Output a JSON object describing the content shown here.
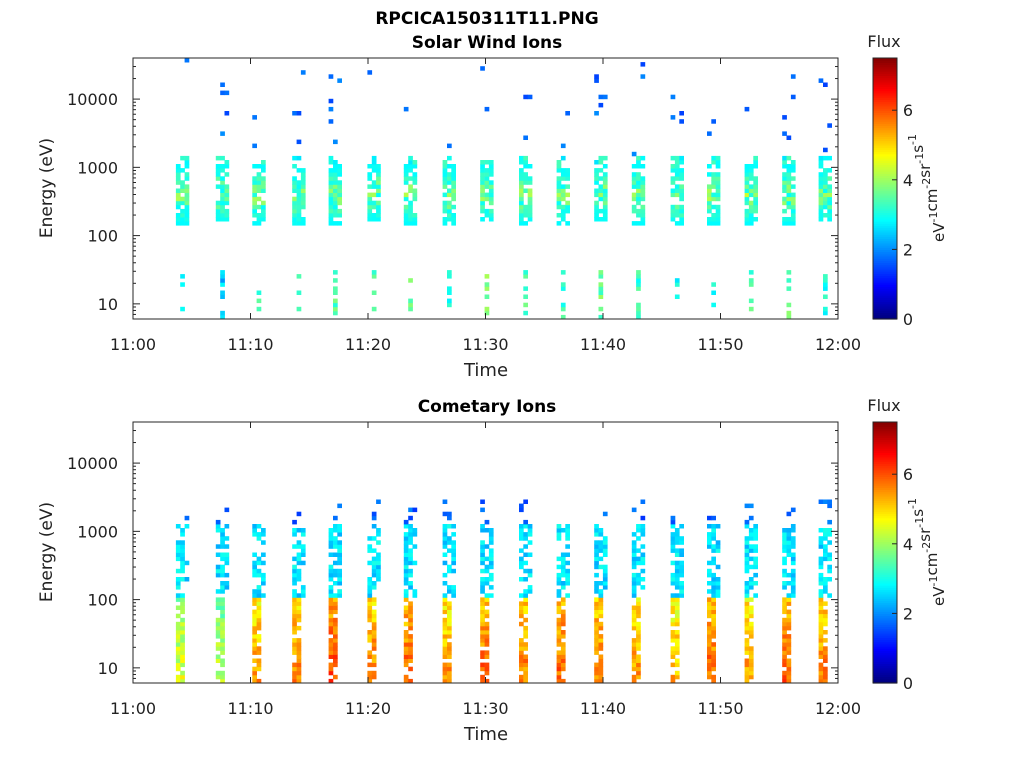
{
  "figure_title": "RPCICA150311T11.PNG",
  "colormap": [
    "#00007f",
    "#0000ff",
    "#007fff",
    "#00ffff",
    "#7fff7f",
    "#ffff00",
    "#ff7f00",
    "#ff0000",
    "#7f0000"
  ],
  "chart_data": [
    {
      "type": "heatmap",
      "title": "Solar Wind Ions",
      "xlabel": "Time",
      "ylabel": "Energy (eV)",
      "y_scale": "log",
      "x_ticks": [
        "11:00",
        "11:10",
        "11:20",
        "11:30",
        "11:40",
        "11:50",
        "12:00"
      ],
      "y_ticks": [
        "10",
        "100",
        "1000",
        "10000"
      ],
      "x_range": [
        "11:00",
        "12:00"
      ],
      "y_range": [
        6,
        40000
      ],
      "colorbar": {
        "title": "Flux",
        "label_parts": [
          "eV",
          "-1",
          "cm",
          "-2",
          "sr",
          "-1",
          "s",
          "-1"
        ],
        "ticks": [
          "0",
          "2",
          "4",
          "6"
        ],
        "range": [
          0,
          7.5
        ]
      },
      "sweeps": [
        {
          "minute": 4.2,
          "peak_energy": 400,
          "low_level": 2.6
        },
        {
          "minute": 7.6,
          "peak_energy": 420,
          "low_level": 2.4
        },
        {
          "minute": 10.7,
          "peak_energy": 400,
          "low_level": 3.2
        },
        {
          "minute": 14.1,
          "peak_energy": 380,
          "low_level": 3.0
        },
        {
          "minute": 17.2,
          "peak_energy": 400,
          "low_level": 3.4
        },
        {
          "minute": 20.5,
          "peak_energy": 420,
          "low_level": 3.4
        },
        {
          "minute": 23.6,
          "peak_energy": 400,
          "low_level": 3.6
        },
        {
          "minute": 26.9,
          "peak_energy": 380,
          "low_level": 3.0
        },
        {
          "minute": 30.1,
          "peak_energy": 420,
          "low_level": 3.8
        },
        {
          "minute": 33.4,
          "peak_energy": 400,
          "low_level": 3.4
        },
        {
          "minute": 36.6,
          "peak_energy": 380,
          "low_level": 3.2
        },
        {
          "minute": 39.8,
          "peak_energy": 420,
          "low_level": 3.6
        },
        {
          "minute": 43.0,
          "peak_energy": 400,
          "low_level": 3.2
        },
        {
          "minute": 46.3,
          "peak_energy": 380,
          "low_level": 2.8
        },
        {
          "minute": 49.4,
          "peak_energy": 400,
          "low_level": 3.0
        },
        {
          "minute": 52.6,
          "peak_energy": 400,
          "low_level": 3.4
        },
        {
          "minute": 55.8,
          "peak_energy": 400,
          "low_level": 3.6
        },
        {
          "minute": 58.9,
          "peak_energy": 420,
          "low_level": 3.0
        }
      ]
    },
    {
      "type": "heatmap",
      "title": "Cometary Ions",
      "xlabel": "Time",
      "ylabel": "Energy (eV)",
      "y_scale": "log",
      "x_ticks": [
        "11:00",
        "11:10",
        "11:20",
        "11:30",
        "11:40",
        "11:50",
        "12:00"
      ],
      "y_ticks": [
        "10",
        "100",
        "1000",
        "10000"
      ],
      "x_range": [
        "11:00",
        "12:00"
      ],
      "y_range": [
        6,
        40000
      ],
      "colorbar": {
        "title": "Flux",
        "label_parts": [
          "eV",
          "-1",
          "cm",
          "-2",
          "sr",
          "-1",
          "s",
          "-1"
        ],
        "ticks": [
          "0",
          "2",
          "4",
          "6"
        ],
        "range": [
          0,
          7.5
        ]
      },
      "sweeps": [
        {
          "minute": 4.2,
          "low_level": 4.2
        },
        {
          "minute": 7.6,
          "low_level": 4.0
        },
        {
          "minute": 10.7,
          "low_level": 5.2
        },
        {
          "minute": 14.1,
          "low_level": 5.4
        },
        {
          "minute": 17.2,
          "low_level": 5.8
        },
        {
          "minute": 20.5,
          "low_level": 5.4
        },
        {
          "minute": 23.6,
          "low_level": 5.6
        },
        {
          "minute": 26.9,
          "low_level": 5.2
        },
        {
          "minute": 30.1,
          "low_level": 5.6
        },
        {
          "minute": 33.4,
          "low_level": 5.4
        },
        {
          "minute": 36.6,
          "low_level": 5.6
        },
        {
          "minute": 39.8,
          "low_level": 5.4
        },
        {
          "minute": 43.0,
          "low_level": 5.2
        },
        {
          "minute": 46.3,
          "low_level": 5.0
        },
        {
          "minute": 49.4,
          "low_level": 5.6
        },
        {
          "minute": 52.6,
          "low_level": 5.2
        },
        {
          "minute": 55.8,
          "low_level": 5.6
        },
        {
          "minute": 58.9,
          "low_level": 5.4
        }
      ]
    }
  ]
}
